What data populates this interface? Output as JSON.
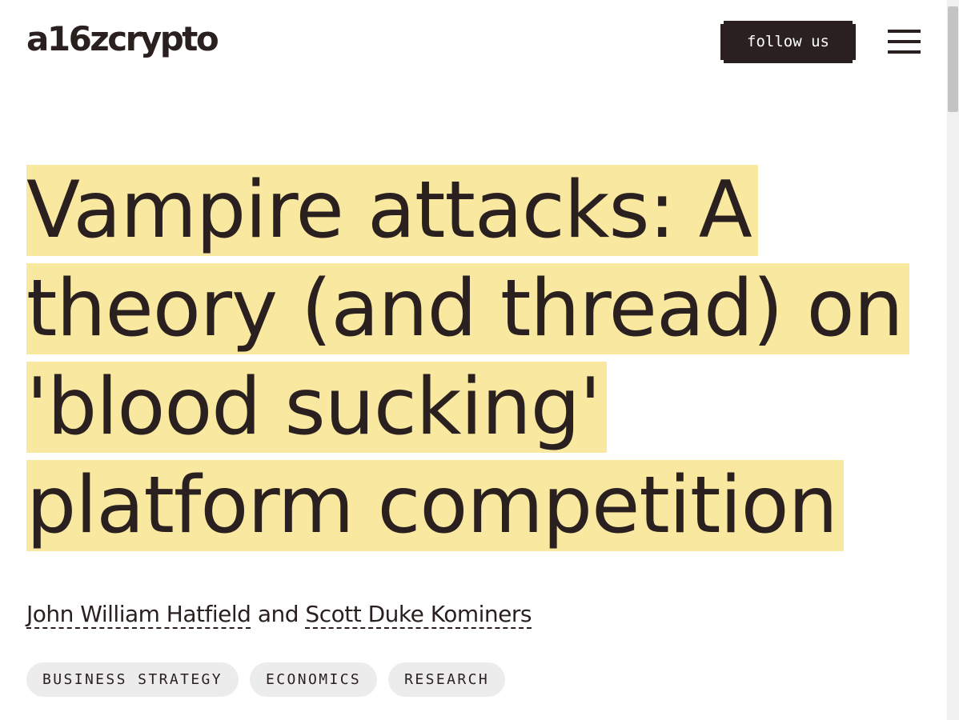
{
  "header": {
    "logo_text": "a16zcrypto",
    "follow_label": "follow us",
    "menu_icon": "hamburger-menu-icon"
  },
  "article": {
    "title": "Vampire attacks: A theory (and thread) on 'blood sucking' platform competition",
    "authors": [
      {
        "name": "John William Hatfield"
      },
      {
        "name": "Scott Duke Kominers"
      }
    ],
    "author_separator": "and",
    "tags": [
      {
        "label": "BUSINESS STRATEGY"
      },
      {
        "label": "ECONOMICS"
      },
      {
        "label": "RESEARCH"
      }
    ]
  },
  "colors": {
    "text": "#2a2020",
    "highlight": "#f9e8a0",
    "tag_background": "#ececec",
    "button_background": "#2a2020"
  }
}
